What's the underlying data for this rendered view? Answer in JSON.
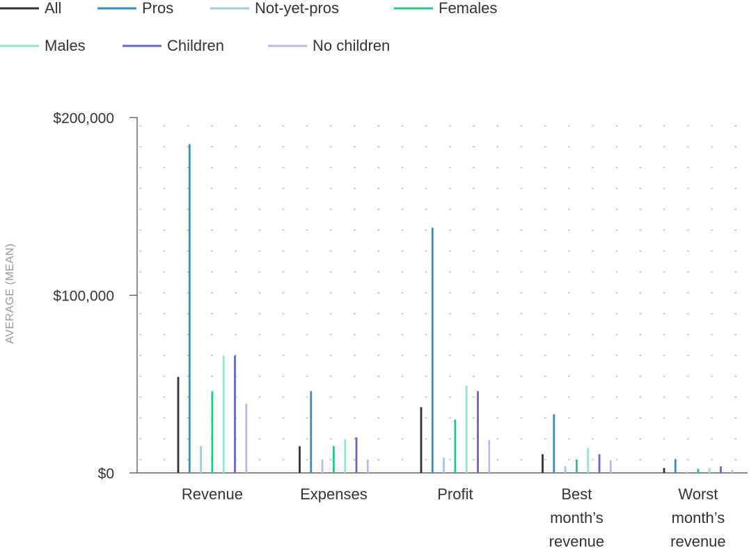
{
  "chart_data": {
    "type": "bar",
    "ylabel": "AVERAGE (MEAN)",
    "xlabel": "",
    "ylim": [
      0,
      200000
    ],
    "y_ticks": [
      {
        "value": 0,
        "label": "$0"
      },
      {
        "value": 100000,
        "label": "$100,000"
      },
      {
        "value": 200000,
        "label": "$200,000"
      }
    ],
    "grid": "dotted",
    "legend_position": "top-left",
    "categories": [
      [
        "Revenue"
      ],
      [
        "Expenses"
      ],
      [
        "Profit"
      ],
      [
        "Best",
        "month’s",
        "revenue"
      ],
      [
        "Worst",
        "month’s",
        "revenue"
      ]
    ],
    "series": [
      {
        "name": "All",
        "color": "#333333",
        "values": [
          54000,
          15000,
          37000,
          10500,
          2800
        ]
      },
      {
        "name": "Pros",
        "color": "#3b88c3",
        "values": [
          185000,
          46000,
          138000,
          33000,
          7800
        ]
      },
      {
        "name": "Not-yet-pros",
        "color": "#a3c8ea",
        "values": [
          15000,
          7500,
          8500,
          3700,
          700
        ]
      },
      {
        "name": "Females",
        "color": "#1ccc86",
        "values": [
          46000,
          15000,
          30000,
          7500,
          2200
        ]
      },
      {
        "name": "Males",
        "color": "#8fe8c6",
        "values": [
          66000,
          19000,
          49000,
          14000,
          2800
        ]
      },
      {
        "name": "Children",
        "color": "#6c63c9",
        "values": [
          66000,
          20000,
          46000,
          10500,
          3700
        ]
      },
      {
        "name": "No children",
        "color": "#bdb8ec",
        "values": [
          39000,
          7500,
          18500,
          7000,
          1500
        ]
      }
    ]
  }
}
